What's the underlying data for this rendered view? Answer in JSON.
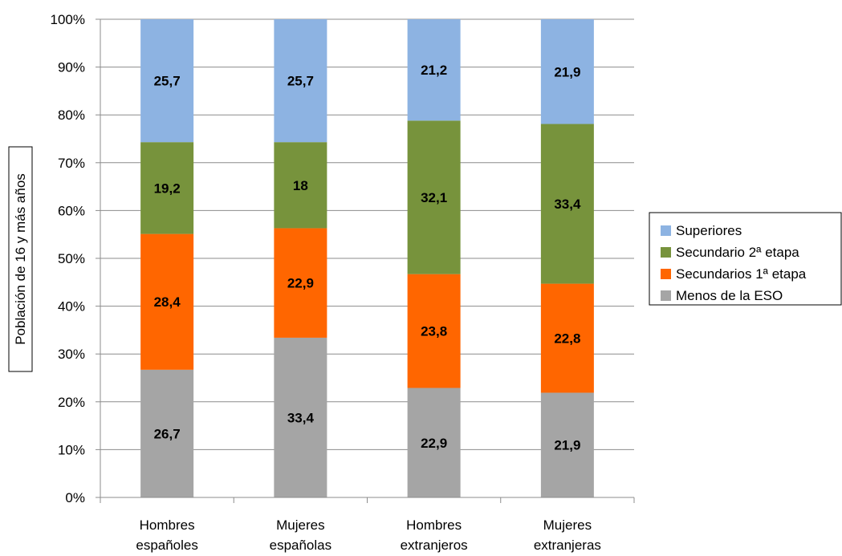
{
  "chart_data": {
    "type": "bar",
    "stacked": true,
    "percent_stacked": true,
    "categories": [
      "Hombres españoles",
      "Mujeres españolas",
      "Hombres extranjeros",
      "Mujeres extranjeras"
    ],
    "category_lines": [
      [
        "Hombres",
        "españoles"
      ],
      [
        "Mujeres",
        "españolas"
      ],
      [
        "Hombres",
        "extranjeros"
      ],
      [
        "Mujeres",
        "extranjeras"
      ]
    ],
    "series": [
      {
        "name": "Menos de la ESO",
        "values": [
          26.7,
          33.4,
          22.9,
          21.9
        ],
        "labels": [
          "26,7",
          "33,4",
          "22,9",
          "21,9"
        ],
        "color": "#a5a5a5"
      },
      {
        "name": "Secundarios 1ª etapa",
        "values": [
          28.4,
          22.9,
          23.8,
          22.8
        ],
        "labels": [
          "28,4",
          "22,9",
          "23,8",
          "22,8"
        ],
        "color": "#ff6600"
      },
      {
        "name": "Secundario 2ª etapa",
        "values": [
          19.2,
          18,
          32.1,
          33.4
        ],
        "labels": [
          "19,2",
          "18",
          "32,1",
          "33,4"
        ],
        "color": "#77933c"
      },
      {
        "name": "Superiores",
        "values": [
          25.7,
          25.7,
          21.2,
          21.9
        ],
        "labels": [
          "25,7",
          "25,7",
          "21,2",
          "21,9"
        ],
        "color": "#8db3e2"
      }
    ],
    "legend_order": [
      "Superiores",
      "Secundario 2ª etapa",
      "Secundarios 1ª etapa",
      "Menos de la ESO"
    ],
    "ylabel": "Población de 16 y más años",
    "xlabel": "",
    "ylim": [
      0,
      100
    ],
    "yticks": [
      "0%",
      "10%",
      "20%",
      "30%",
      "40%",
      "50%",
      "60%",
      "70%",
      "80%",
      "90%",
      "100%"
    ],
    "grid": true,
    "legend_position": "right"
  }
}
